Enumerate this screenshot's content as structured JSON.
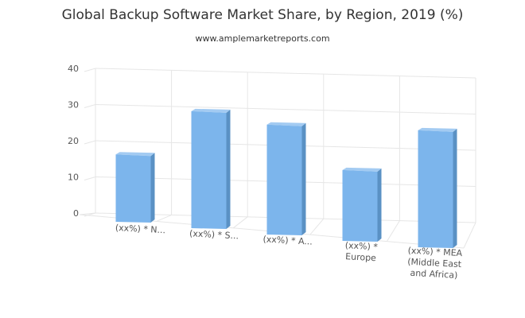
{
  "chart_data": {
    "type": "bar",
    "title": "Global Backup Software Market Share, by Region, 2019 (%)",
    "subtitle": "www.amplemarketreports.com",
    "xlabel": "",
    "ylabel": "",
    "ylim": [
      0,
      40
    ],
    "yticks": [
      "0",
      "10",
      "20",
      "30",
      "40"
    ],
    "categories": [
      [
        "(xx%) * N..."
      ],
      [
        "(xx%) * S..."
      ],
      [
        "(xx%) * A..."
      ],
      [
        "(xx%) *",
        "Europe"
      ],
      [
        "(xx%) * MEA",
        "(Middle East",
        "and Africa)"
      ]
    ],
    "values": [
      19,
      33,
      31,
      20,
      33
    ],
    "grid": true,
    "legend": "none",
    "bar_color": "#7cb5ec",
    "bar_side_color": "#5a91c4",
    "bar_top_color": "#a3cbf2"
  }
}
